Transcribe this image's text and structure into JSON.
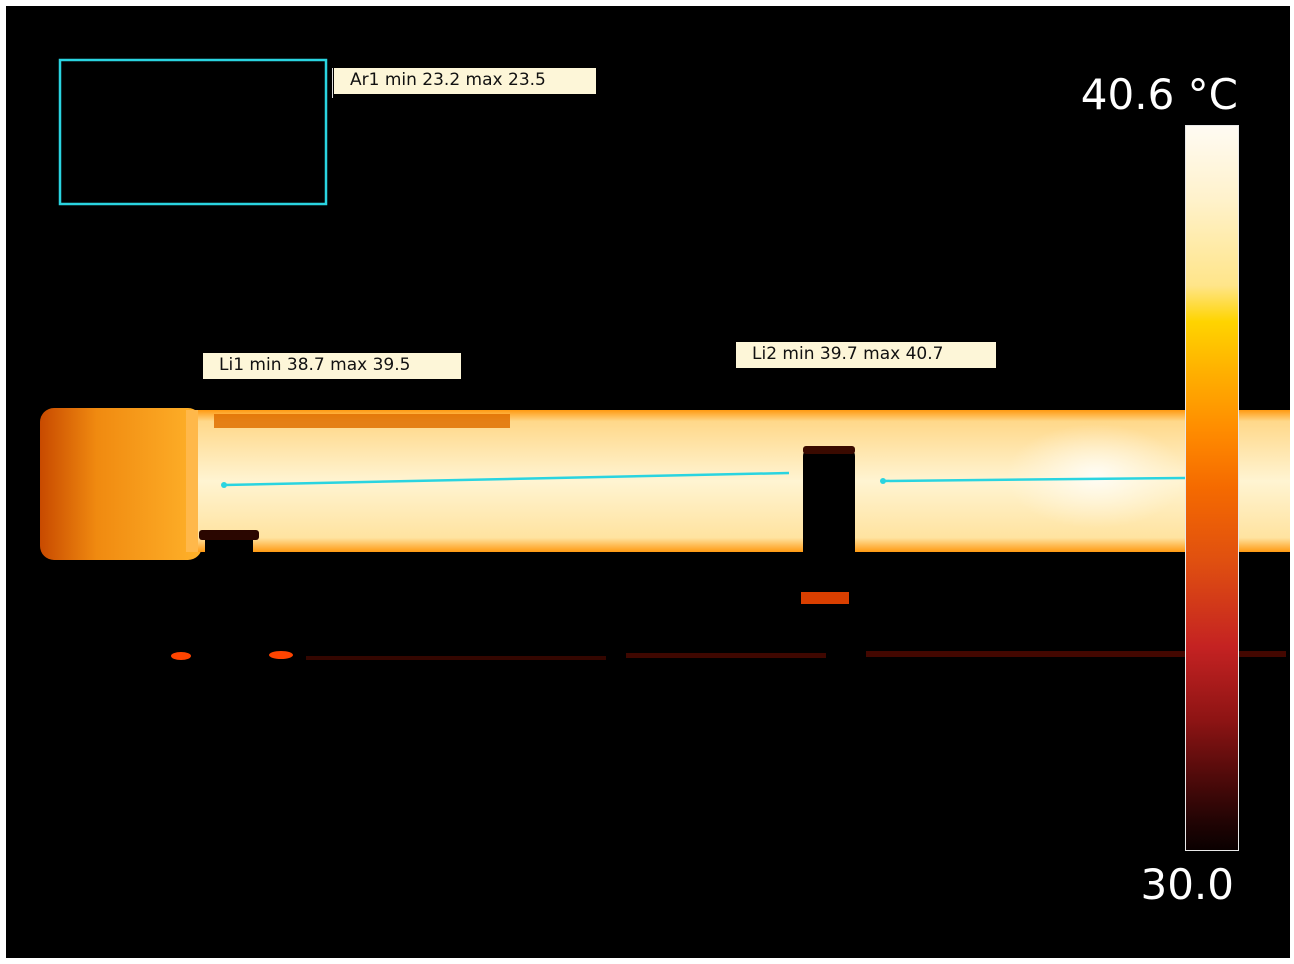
{
  "measurements": {
    "area1": {
      "label": "Ar1 min 23.2 max 23.5"
    },
    "line1": {
      "label": "Li1 min 38.7 max 39.5"
    },
    "line2": {
      "label": "Li2 min 39.7 max 40.7"
    }
  },
  "scale": {
    "max_label": "40.6 °C",
    "min_label": "30.0"
  },
  "colors": {
    "overlay": "#2ad4e0",
    "label_bg": "#fdf6d8"
  }
}
